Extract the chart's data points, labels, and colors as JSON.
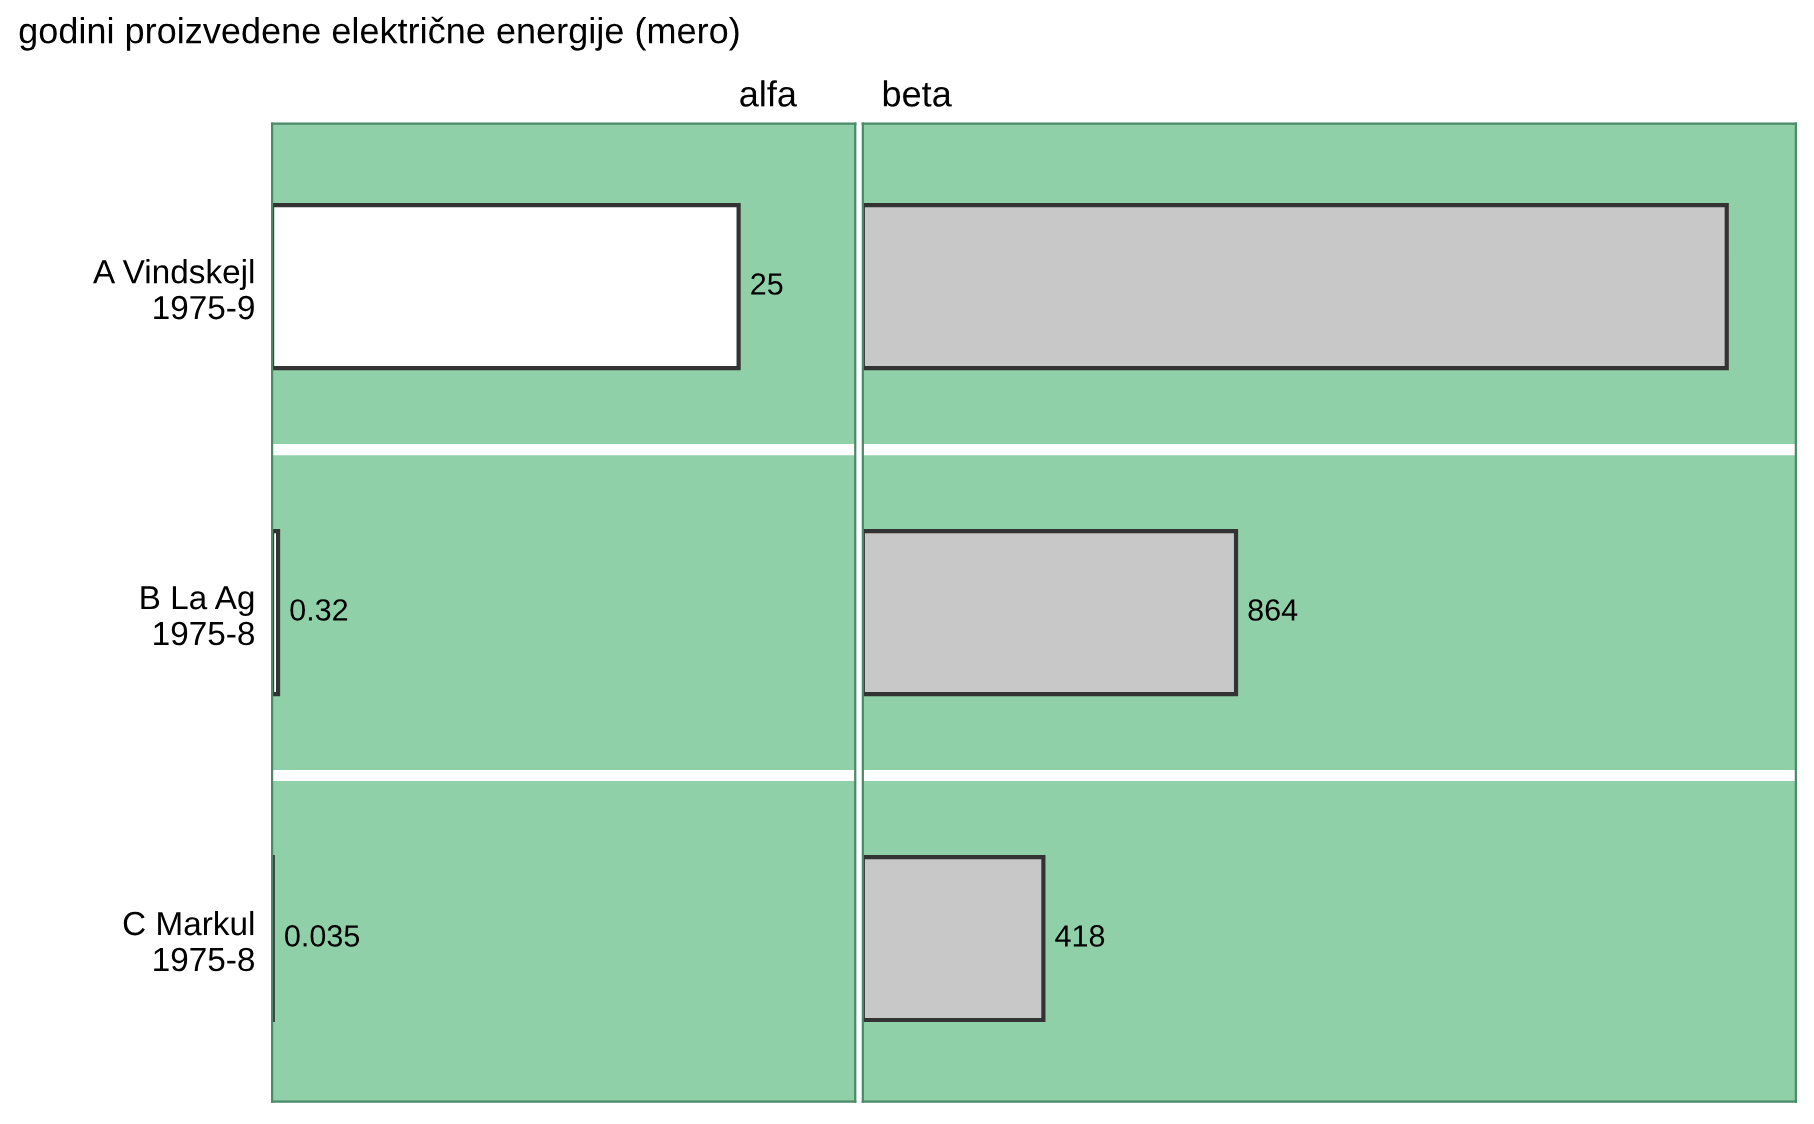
{
  "chart_data": [
    {
      "type": "bar",
      "orientation": "horizontal",
      "title": "alfa",
      "annotations": [
        "godini proizvedene električne energije (mero)"
      ],
      "categories": [
        "A Vindskejl\n1975-9",
        "B La Ag\n1975-8",
        "C Markul\n1975-8"
      ],
      "values": [
        25,
        0.32,
        0.035
      ],
      "color": "#ffffff",
      "data_labels": true,
      "tick_labels": "y"
    },
    {
      "type": "bar",
      "orientation": "horizontal",
      "title": "beta",
      "values": [
        2000,
        864,
        418
      ],
      "color": "#c8c8c8",
      "value_labels": [
        null,
        "864",
        "418"
      ],
      "tick_labels": false
    }
  ]
}
